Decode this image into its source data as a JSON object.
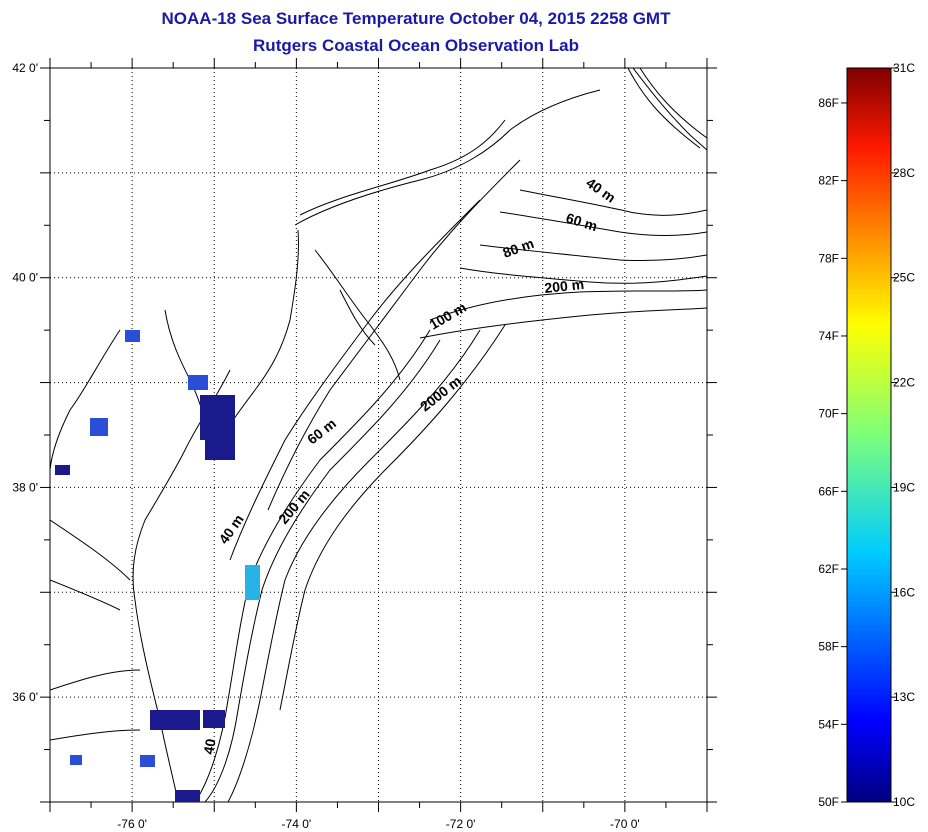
{
  "title": "NOAA-18 Sea Surface Temperature October 04, 2015 2258 GMT",
  "subtitle": "Rutgers Coastal Ocean Observation Lab",
  "map": {
    "lon_range": [
      -77,
      -69
    ],
    "lat_range": [
      35,
      42
    ],
    "lon_tick_labels": [
      {
        "lon": -76,
        "label": "-76 0'"
      },
      {
        "lon": -74,
        "label": "-74 0'"
      },
      {
        "lon": -72,
        "label": "-72 0'"
      },
      {
        "lon": -70,
        "label": "-70 0'"
      }
    ],
    "lat_tick_labels": [
      {
        "lat": 42,
        "label": "42 0'"
      },
      {
        "lat": 40,
        "label": "40 0'"
      },
      {
        "lat": 38,
        "label": "38 0'"
      },
      {
        "lat": 36,
        "label": "36 0'"
      }
    ],
    "gridlines": "dotted",
    "contour_labels": [
      {
        "text": "40 m"
      },
      {
        "text": "60 m"
      },
      {
        "text": "80 m"
      },
      {
        "text": "200 m"
      },
      {
        "text": "100 m"
      },
      {
        "text": "2000 m"
      },
      {
        "text": "60 m"
      },
      {
        "text": "200 m"
      },
      {
        "text": "40 m"
      },
      {
        "text": "40"
      }
    ]
  },
  "colorbar": {
    "min_c": 10,
    "max_c": 31,
    "fahrenheit_labels": [
      "86F",
      "82F",
      "78F",
      "74F",
      "70F",
      "66F",
      "62F",
      "58F",
      "54F",
      "50F"
    ],
    "celsius_labels": [
      "31C",
      "28C",
      "25C",
      "22C",
      "19C",
      "16C",
      "13C",
      "10C"
    ],
    "colormap": "jet"
  },
  "colors": {
    "title": "#1a1aa6",
    "sst_dark": "#1a1a8c",
    "sst_mid": "#2a4fd6",
    "sst_cyan": "#27b3e6"
  }
}
